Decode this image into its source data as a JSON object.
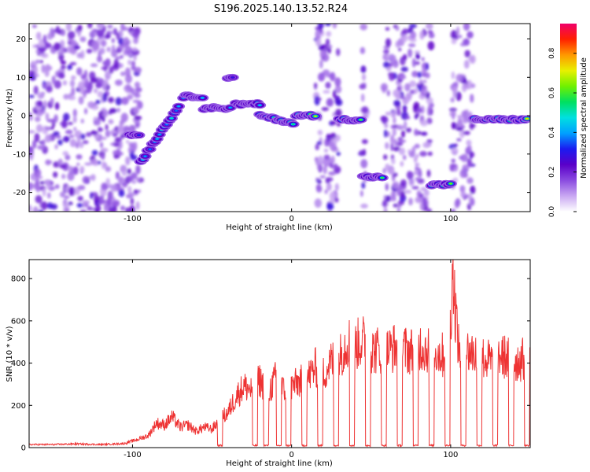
{
  "title": "S196.2025.140.13.52.R24",
  "top": {
    "type": "heatmap",
    "xlabel": "Height of straight line (km)",
    "ylabel": "Frequency (Hz)",
    "xlim": [
      -165,
      150
    ],
    "ylim": [
      -25,
      24
    ],
    "xticks": [
      "-100",
      "0",
      "100"
    ],
    "yticks": [
      "20",
      "10",
      "0",
      "-10",
      "-20"
    ],
    "colorbar": {
      "label": "Normalized spectral amplitude",
      "range": [
        0.0,
        0.95
      ],
      "ticks": [
        "0.0",
        "0.2",
        "0.4",
        "0.6",
        "0.8"
      ],
      "colormap": [
        "#ffffff",
        "#c9a7f2",
        "#8a4be0",
        "#5a00c8",
        "#1b1bf0",
        "#00a0ff",
        "#00e0e0",
        "#00e060",
        "#70f000",
        "#e8f000",
        "#ff9800",
        "#ff2000",
        "#f0006a"
      ]
    },
    "segments": [
      {
        "x0": -102,
        "x1": -95,
        "f": -5,
        "amp": 0.4
      },
      {
        "x0": -95,
        "x1": -70,
        "f": -12,
        "f_end": 3,
        "amp": 0.5
      },
      {
        "x0": -68,
        "x1": -55,
        "f": 5,
        "amp": 0.5
      },
      {
        "x0": -55,
        "x1": -38,
        "f": 2,
        "amp": 0.45
      },
      {
        "x0": -40,
        "x1": -36,
        "f": 10,
        "amp": 0.3
      },
      {
        "x0": -35,
        "x1": -20,
        "f": 3,
        "amp": 0.55
      },
      {
        "x0": -20,
        "x1": 2,
        "f": 0,
        "f_end": -2,
        "amp": 0.7
      },
      {
        "x0": 3,
        "x1": 15,
        "f": 0,
        "amp": 0.8
      },
      {
        "x0": 30,
        "x1": 44,
        "f": -1,
        "amp": 0.75
      },
      {
        "x0": 45,
        "x1": 58,
        "f": -16,
        "amp": 0.7
      },
      {
        "x0": 88,
        "x1": 101,
        "f": -18,
        "amp": 0.65
      },
      {
        "x0": 115,
        "x1": 148,
        "f": -1,
        "amp": 0.75
      }
    ],
    "noise_bands": [
      [
        -165,
        -95
      ],
      [
        15,
        30
      ],
      [
        44,
        47
      ],
      [
        58,
        88
      ],
      [
        101,
        114
      ]
    ]
  },
  "bottom": {
    "type": "line",
    "xlabel": "Height of straight line (km)",
    "ylabel": "SNR (10 * v/v)",
    "xlim": [
      -165,
      150
    ],
    "ylim": [
      0,
      890
    ],
    "xticks": [
      "-100",
      "0",
      "100"
    ],
    "yticks": [
      "0",
      "200",
      "400",
      "600",
      "800"
    ],
    "color": "#ee3333",
    "series": [
      {
        "x": [
          -165,
          -150,
          -135,
          -120,
          -105,
          -95,
          -90,
          -85,
          -80,
          -75,
          -70,
          -65,
          -60,
          -55,
          -50,
          -45,
          -40,
          -35,
          -30,
          -25,
          -20,
          -15,
          -10,
          -5,
          0,
          5,
          10,
          15,
          20,
          25,
          30,
          35,
          40,
          45,
          50,
          55,
          60,
          65,
          70,
          75,
          80,
          85,
          90,
          95,
          100,
          101,
          105,
          110,
          115,
          120,
          125,
          130,
          135,
          140,
          145,
          150
        ],
        "y": [
          15,
          15,
          18,
          15,
          20,
          45,
          60,
          120,
          110,
          150,
          100,
          110,
          80,
          100,
          90,
          140,
          170,
          250,
          300,
          280,
          330,
          260,
          340,
          280,
          300,
          320,
          340,
          390,
          360,
          420,
          440,
          520,
          500,
          520,
          470,
          480,
          470,
          490,
          480,
          470,
          500,
          480,
          470,
          450,
          600,
          880,
          480,
          470,
          460,
          440,
          420,
          450,
          440,
          420,
          430,
          420
        ]
      }
    ],
    "dropouts": [
      -45,
      -23,
      -16,
      -8,
      -2,
      8,
      18,
      28,
      38,
      48,
      58,
      68,
      78,
      88,
      98,
      108,
      118,
      128,
      138,
      148
    ]
  }
}
